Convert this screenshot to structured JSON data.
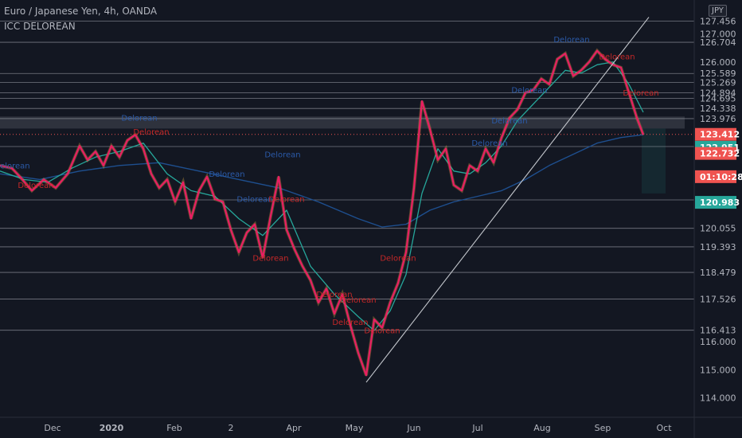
{
  "header": {
    "title": "Euro / Japanese Yen, 4h, OANDA",
    "indicator": "ICC DELOREAN",
    "currency": "JPY"
  },
  "colors": {
    "background": "#131722",
    "grid_line": "#9598a1",
    "price_line": "#e91e63",
    "candle_line": "#d9a441",
    "ema_fast": "#26a69a",
    "sma_slow": "#1e4f8f",
    "trend_line": "#c3c6cc",
    "label_red": "#ef5350",
    "label_teal": "#26a69a",
    "label_dark": "#131722",
    "text_label_blue": "#2b5aa8",
    "text_label_red": "#c62828"
  },
  "chart_data": {
    "type": "line",
    "symbol": "EURJPY",
    "x_axis_labels": [
      "Dec",
      "2020",
      "Feb",
      "2",
      "Apr",
      "May",
      "Jun",
      "Jul",
      "Aug",
      "Sep",
      "Oct"
    ],
    "y_range": [
      113.7,
      128.1
    ],
    "y_tick_labels": [
      {
        "value": 127.456,
        "label": "127.456",
        "style": "plain"
      },
      {
        "value": 127.0,
        "label": "127.000",
        "style": "plain"
      },
      {
        "value": 126.704,
        "label": "126.704",
        "style": "plain"
      },
      {
        "value": 126.0,
        "label": "126.000",
        "style": "plain"
      },
      {
        "value": 125.589,
        "label": "125.589",
        "style": "plain"
      },
      {
        "value": 125.269,
        "label": "125.269",
        "style": "plain"
      },
      {
        "value": 124.894,
        "label": "124.894",
        "style": "plain"
      },
      {
        "value": 124.695,
        "label": "124.695",
        "style": "plain"
      },
      {
        "value": 124.338,
        "label": "124.338",
        "style": "plain"
      },
      {
        "value": 123.976,
        "label": "123.976",
        "style": "plain"
      },
      {
        "value": 123.412,
        "label": "123.412",
        "style": "red"
      },
      {
        "value": 122.977,
        "label": "122.977",
        "style": "plain"
      },
      {
        "value": 122.951,
        "label": "122.951",
        "style": "teal"
      },
      {
        "value": 122.732,
        "label": "122.732",
        "style": "red"
      },
      {
        "value": 121.9,
        "label": "01:10:28",
        "style": "dark"
      },
      {
        "value": 121.071,
        "label": "121.071",
        "style": "plain"
      },
      {
        "value": 120.983,
        "label": "120.983",
        "style": "teal"
      },
      {
        "value": 120.055,
        "label": "120.055",
        "style": "plain"
      },
      {
        "value": 119.393,
        "label": "119.393",
        "style": "plain"
      },
      {
        "value": 118.479,
        "label": "118.479",
        "style": "plain"
      },
      {
        "value": 117.526,
        "label": "117.526",
        "style": "plain"
      },
      {
        "value": 116.413,
        "label": "116.413",
        "style": "plain"
      },
      {
        "value": 116.0,
        "label": "116.000",
        "style": "plain"
      },
      {
        "value": 115.0,
        "label": "115.000",
        "style": "plain"
      },
      {
        "value": 114.0,
        "label": "114.000",
        "style": "plain"
      }
    ],
    "horizontal_levels": [
      127.456,
      126.704,
      125.589,
      125.269,
      124.894,
      124.695,
      124.338,
      123.976,
      122.977,
      121.071,
      120.055,
      119.393,
      118.479,
      117.526,
      116.413
    ],
    "current_price": 123.412,
    "zone": [
      123.62,
      124.05
    ],
    "series": [
      {
        "key": "price",
        "x": [
          0,
          15,
          25,
          40,
          55,
          70,
          85,
          100,
          110,
          120,
          130,
          140,
          150,
          160,
          170,
          180,
          190,
          200,
          210,
          220,
          230,
          240,
          250,
          260,
          270,
          280,
          290,
          300,
          310,
          320,
          330,
          340,
          350,
          360,
          370,
          380,
          390,
          400,
          410,
          420,
          430,
          440,
          450,
          460,
          470,
          480,
          490,
          500,
          510,
          520,
          530,
          540,
          550,
          560,
          570,
          580,
          590,
          600,
          610,
          620,
          630,
          640,
          650,
          660,
          670,
          680,
          690,
          700,
          710,
          720,
          730,
          740,
          750,
          760,
          770,
          780,
          790,
          800,
          808
        ],
        "y": [
          122.3,
          122.2,
          121.9,
          121.4,
          121.8,
          121.5,
          122.0,
          123.0,
          122.5,
          122.8,
          122.3,
          123.0,
          122.6,
          123.2,
          123.4,
          122.9,
          122.0,
          121.5,
          121.8,
          121.0,
          121.7,
          120.4,
          121.4,
          121.9,
          121.1,
          121.0,
          120.0,
          119.2,
          119.9,
          120.2,
          119.0,
          120.5,
          121.9,
          120.0,
          119.3,
          118.7,
          118.2,
          117.4,
          117.9,
          117.0,
          117.7,
          116.6,
          115.6,
          114.8,
          116.8,
          116.5,
          117.4,
          118.1,
          119.2,
          121.5,
          124.6,
          123.6,
          122.5,
          122.9,
          121.6,
          121.4,
          122.3,
          122.1,
          122.9,
          122.4,
          123.3,
          124.0,
          124.3,
          124.9,
          125.0,
          125.4,
          125.2,
          126.1,
          126.3,
          125.5,
          125.7,
          126.0,
          126.4,
          126.1,
          125.9,
          125.8,
          124.9,
          124.0,
          123.4
        ]
      },
      {
        "key": "ema_fast",
        "x": [
          0,
          30,
          60,
          90,
          120,
          150,
          180,
          210,
          240,
          270,
          300,
          330,
          360,
          390,
          420,
          450,
          470,
          490,
          510,
          530,
          550,
          570,
          590,
          610,
          630,
          650,
          670,
          690,
          710,
          730,
          750,
          770,
          790,
          808
        ],
        "y": [
          122.1,
          121.8,
          121.7,
          122.2,
          122.6,
          122.8,
          123.1,
          122.0,
          121.4,
          121.2,
          120.4,
          119.8,
          120.7,
          118.7,
          117.7,
          116.9,
          116.4,
          117.1,
          118.4,
          121.3,
          122.9,
          122.1,
          122.0,
          122.4,
          123.0,
          123.9,
          124.5,
          125.1,
          125.7,
          125.6,
          125.9,
          126.0,
          125.2,
          124.2
        ]
      },
      {
        "key": "sma_slow",
        "x": [
          0,
          50,
          100,
          150,
          200,
          250,
          300,
          350,
          400,
          450,
          480,
          510,
          540,
          570,
          600,
          630,
          660,
          690,
          720,
          750,
          780,
          808
        ],
        "y": [
          122.0,
          121.8,
          122.1,
          122.3,
          122.4,
          122.1,
          121.8,
          121.5,
          121.0,
          120.4,
          120.1,
          120.2,
          120.7,
          121.0,
          121.2,
          121.4,
          121.8,
          122.3,
          122.7,
          123.1,
          123.3,
          123.4
        ]
      },
      {
        "key": "trend_line",
        "x": [
          460,
          815
        ],
        "y": [
          114.55,
          127.6
        ]
      }
    ],
    "annotations": [
      {
        "text": "Delorean",
        "x": 15,
        "y": 122.2,
        "color": "blue"
      },
      {
        "text": "Delorean",
        "x": 45,
        "y": 121.5,
        "color": "red"
      },
      {
        "text": "Delorean",
        "x": 175,
        "y": 123.9,
        "color": "blue"
      },
      {
        "text": "Delorean",
        "x": 190,
        "y": 123.4,
        "color": "red"
      },
      {
        "text": "Delorean",
        "x": 285,
        "y": 121.9,
        "color": "blue"
      },
      {
        "text": "Delorean",
        "x": 320,
        "y": 121.0,
        "color": "blue"
      },
      {
        "text": "Delorean",
        "x": 355,
        "y": 122.6,
        "color": "blue"
      },
      {
        "text": "Delorean",
        "x": 360,
        "y": 121.0,
        "color": "red"
      },
      {
        "text": "Delorean",
        "x": 340,
        "y": 118.9,
        "color": "red"
      },
      {
        "text": "Delorean",
        "x": 420,
        "y": 117.6,
        "color": "red"
      },
      {
        "text": "Delorean",
        "x": 450,
        "y": 117.4,
        "color": "red"
      },
      {
        "text": "Delorean",
        "x": 440,
        "y": 116.6,
        "color": "red"
      },
      {
        "text": "Delorean",
        "x": 480,
        "y": 116.3,
        "color": "red"
      },
      {
        "text": "Delorean",
        "x": 500,
        "y": 118.9,
        "color": "red"
      },
      {
        "text": "Delorean",
        "x": 615,
        "y": 123.0,
        "color": "blue"
      },
      {
        "text": "Delorean",
        "x": 640,
        "y": 123.8,
        "color": "blue"
      },
      {
        "text": "Delorean",
        "x": 665,
        "y": 124.9,
        "color": "blue"
      },
      {
        "text": "Delorean",
        "x": 718,
        "y": 126.7,
        "color": "blue"
      },
      {
        "text": "Delorean",
        "x": 775,
        "y": 126.1,
        "color": "red"
      },
      {
        "text": "Delorean",
        "x": 805,
        "y": 124.8,
        "color": "red"
      }
    ]
  }
}
